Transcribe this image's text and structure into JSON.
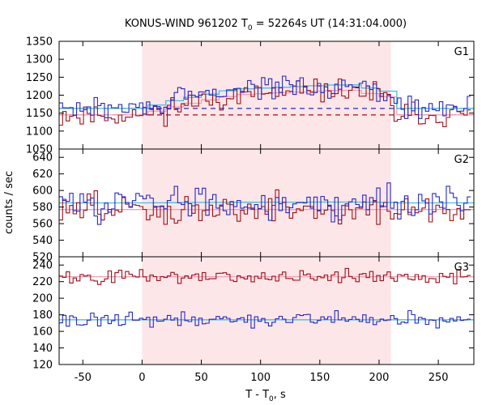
{
  "chart_data": {
    "title_prefix": "KONUS-WIND 961202 T",
    "title_sub": "0",
    "title_suffix": " = 52264s UT (14:31:04.000)",
    "xlabel_prefix": "T - T",
    "xlabel_sub": "0",
    "xlabel_suffix": ", s",
    "ylabel": "counts / sec",
    "xlim": [
      -70,
      280
    ],
    "xticks": [
      -50,
      0,
      50,
      100,
      150,
      200,
      250
    ],
    "bin_width": 2.944,
    "shaded_interval": [
      0,
      210
    ],
    "colors": {
      "series_red": "#a01018",
      "series_blue": "#2828c8",
      "fit_cyan": "#40c0e0",
      "fit_pink": "#f0a0b8",
      "shade": "#fde6e8"
    },
    "panels": [
      {
        "label": "G1",
        "type": "line",
        "ylim": [
          1050,
          1350
        ],
        "yticks": [
          1050,
          1100,
          1150,
          1200,
          1250,
          1300,
          1350
        ],
        "series": [
          {
            "color_key": "series_red",
            "background": 1145,
            "peak_level": 1215,
            "noise": 22,
            "seed": 11
          },
          {
            "color_key": "series_blue",
            "background": 1163,
            "peak_level": 1230,
            "noise": 22,
            "seed": 29
          }
        ],
        "background_lines": [
          {
            "color_key": "series_red",
            "value": 1145
          },
          {
            "color_key": "series_blue",
            "value": 1163
          }
        ]
      },
      {
        "label": "G2",
        "type": "line",
        "ylim": [
          520,
          650
        ],
        "yticks": [
          520,
          540,
          560,
          580,
          600,
          620,
          640
        ],
        "series": [
          {
            "color_key": "series_red",
            "background": 577,
            "peak_level": 577,
            "noise": 13,
            "seed": 47
          },
          {
            "color_key": "series_blue",
            "background": 585,
            "peak_level": 586,
            "noise": 13,
            "seed": 83
          }
        ],
        "background_lines": []
      },
      {
        "label": "G3",
        "type": "line",
        "ylim": [
          120,
          250
        ],
        "yticks": [
          120,
          140,
          160,
          180,
          200,
          220,
          240
        ],
        "series": [
          {
            "color_key": "series_red",
            "background": 226,
            "peak_level": 226,
            "noise": 6,
            "seed": 101
          },
          {
            "color_key": "series_blue",
            "background": 174,
            "peak_level": 174,
            "noise": 6,
            "seed": 131
          }
        ],
        "background_lines": []
      }
    ]
  }
}
